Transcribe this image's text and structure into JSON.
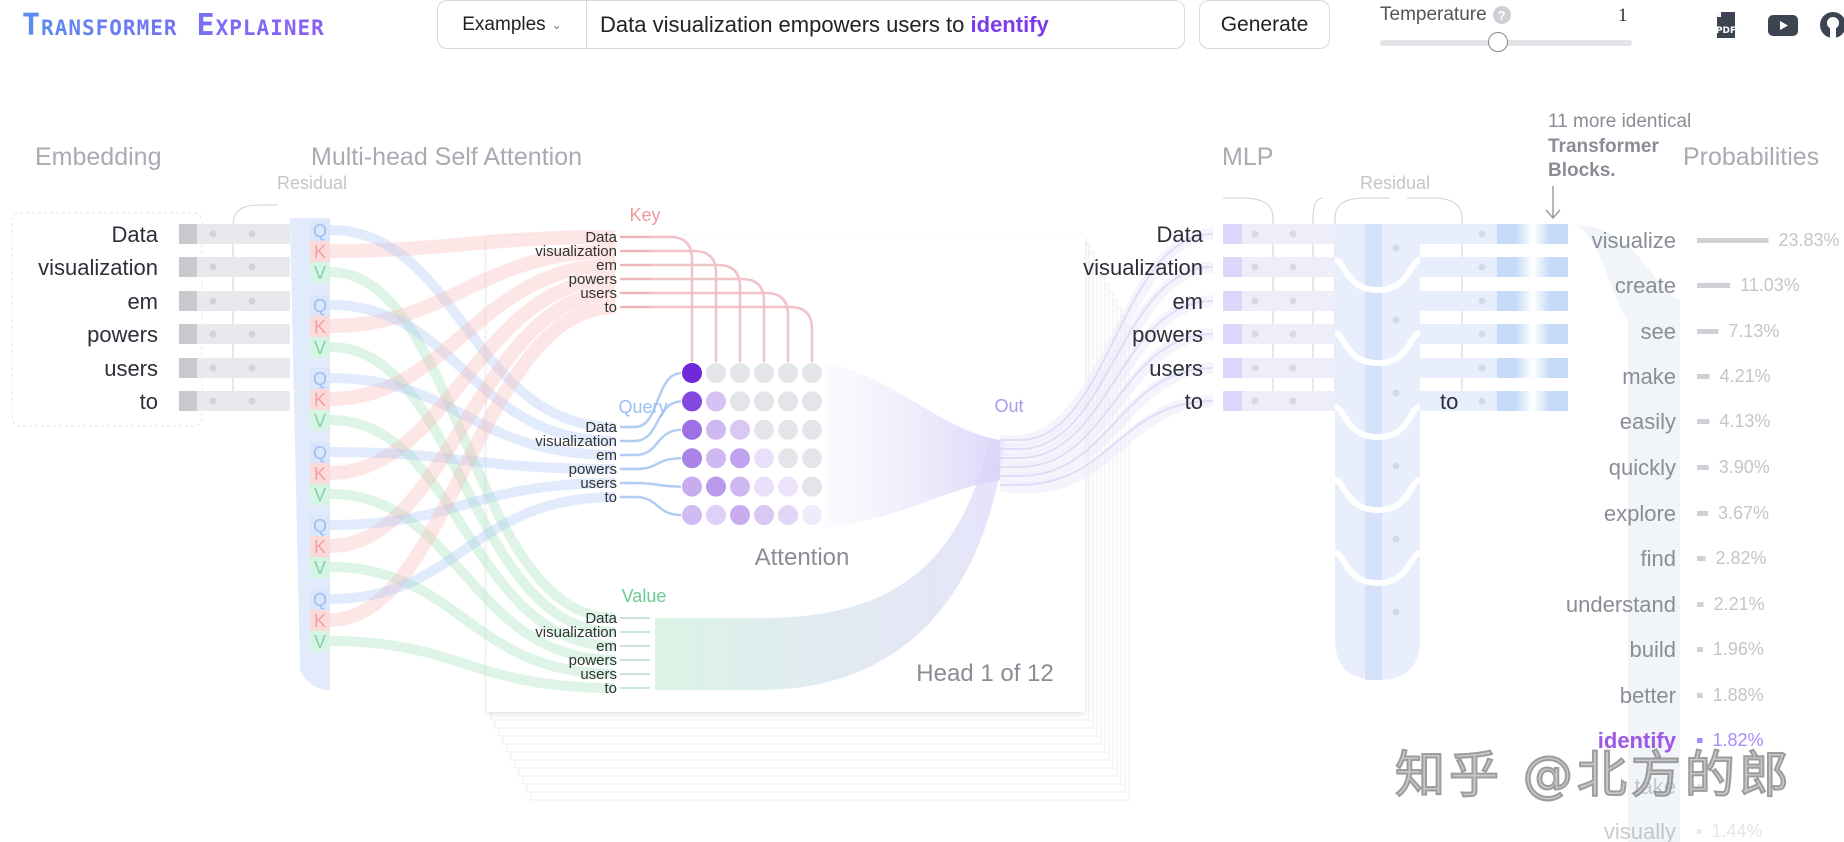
{
  "header": {
    "logo": "Transformer Explainer",
    "examples_label": "Examples",
    "prompt_text": "Data visualization empowers users to",
    "prompt_highlight": "identify",
    "generate_label": "Generate",
    "temperature_label": "Temperature",
    "temperature_help": "?",
    "temperature_value": "1",
    "temperature_fraction": 0.47,
    "icons": [
      "pdf-icon",
      "youtube-icon",
      "github-icon"
    ]
  },
  "sections": {
    "embedding": "Embedding",
    "attention": "Multi-head Self Attention",
    "mlp": "MLP",
    "probabilities": "Probabilities",
    "residual_1": "Residual",
    "residual_2": "Residual",
    "more_blocks_1": "11 more identical",
    "more_blocks_2": "Transformer",
    "more_blocks_3": "Blocks."
  },
  "tokens": [
    "Data",
    "visualization",
    "em",
    "powers",
    "users",
    "to"
  ],
  "qkv": {
    "q": "Q",
    "k": "K",
    "v": "V"
  },
  "attention": {
    "key_label": "Key",
    "query_label": "Query",
    "value_label": "Value",
    "out_label": "Out",
    "matrix_label": "Attention",
    "head_label": "Head 1 of 12",
    "matrix": [
      [
        1.0,
        0,
        0,
        0,
        0,
        0
      ],
      [
        0.85,
        0.25,
        0,
        0,
        0,
        0
      ],
      [
        0.65,
        0.3,
        0.22,
        0,
        0,
        0
      ],
      [
        0.55,
        0.3,
        0.4,
        0.1,
        0,
        0
      ],
      [
        0.35,
        0.45,
        0.3,
        0.1,
        0.08,
        0
      ],
      [
        0.28,
        0.18,
        0.35,
        0.22,
        0.15,
        0.05
      ]
    ]
  },
  "mlp": {
    "residual_token": "to"
  },
  "probabilities": [
    {
      "word": "visualize",
      "pct": "23.83%",
      "value": 23.83
    },
    {
      "word": "create",
      "pct": "11.03%",
      "value": 11.03
    },
    {
      "word": "see",
      "pct": "7.13%",
      "value": 7.13
    },
    {
      "word": "make",
      "pct": "4.21%",
      "value": 4.21
    },
    {
      "word": "easily",
      "pct": "4.13%",
      "value": 4.13
    },
    {
      "word": "quickly",
      "pct": "3.90%",
      "value": 3.9
    },
    {
      "word": "explore",
      "pct": "3.67%",
      "value": 3.67
    },
    {
      "word": "find",
      "pct": "2.82%",
      "value": 2.82
    },
    {
      "word": "understand",
      "pct": "2.21%",
      "value": 2.21
    },
    {
      "word": "build",
      "pct": "1.96%",
      "value": 1.96
    },
    {
      "word": "better",
      "pct": "1.88%",
      "value": 1.88
    },
    {
      "word": "identify",
      "pct": "1.82%",
      "value": 1.82,
      "selected": true
    },
    {
      "word": "take",
      "pct": "",
      "value": 1.5
    },
    {
      "word": "visually",
      "pct": "1.44%",
      "value": 1.44
    }
  ],
  "colors": {
    "accent": "#7c3aed",
    "query": "#9cbff5",
    "key": "#f2a0a0",
    "value": "#7fd4a5",
    "lavender": "#c9c0f5"
  },
  "watermark": "知乎 @北方的郎"
}
